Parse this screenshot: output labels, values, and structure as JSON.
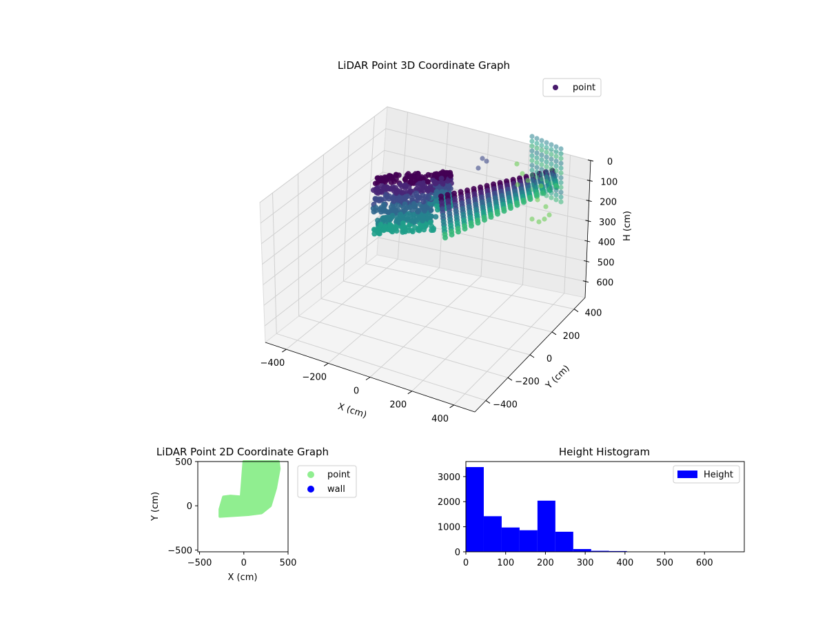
{
  "chart_data": [
    {
      "type": "scatter",
      "projection": "3d",
      "title": "LiDAR Point 3D Coordinate Graph",
      "xlabel": "X (cm)",
      "ylabel": "Y (cm)",
      "zlabel": "H (cm)",
      "xlim": [
        -500,
        500
      ],
      "ylim": [
        -500,
        500
      ],
      "zlim": [
        680,
        0
      ],
      "xticks": [
        "−400",
        "−200",
        "0",
        "200",
        "400"
      ],
      "yticks": [
        "−400",
        "−200",
        "0",
        "200",
        "400"
      ],
      "zticks": [
        "0",
        "100",
        "200",
        "300",
        "400",
        "500",
        "600"
      ],
      "colormap": "viridis",
      "legend": {
        "label": "point",
        "placement": "top-right",
        "color": "#481a6c"
      },
      "series": [
        {
          "name": "point",
          "description_points": [
            {
              "x": -250,
              "y": -100,
              "h": 0
            },
            {
              "x": -150,
              "y": -80,
              "h": 150
            },
            {
              "x": 0,
              "y": 0,
              "h": 200
            },
            {
              "x": 200,
              "y": 200,
              "h": 220
            },
            {
              "x": 350,
              "y": 420,
              "h": 50
            },
            {
              "x": 380,
              "y": 450,
              "h": 250
            }
          ]
        }
      ]
    },
    {
      "type": "scatter",
      "title": "LiDAR Point 2D Coordinate Graph",
      "xlabel": "X (cm)",
      "ylabel": "Y (cm)",
      "xlim": [
        -520,
        500
      ],
      "ylim": [
        -520,
        500
      ],
      "xticks": [
        "−500",
        "0",
        "500"
      ],
      "yticks": [
        "−500",
        "0",
        "500"
      ],
      "legend": {
        "placement": "outside-right"
      },
      "series": [
        {
          "name": "point",
          "color": "#90ee90",
          "region": [
            [
              -270,
              -40
            ],
            [
              -230,
              100
            ],
            [
              -150,
              110
            ],
            [
              -30,
              100
            ],
            [
              0,
              500
            ],
            [
              390,
              500
            ],
            [
              400,
              420
            ],
            [
              360,
              200
            ],
            [
              300,
              0
            ],
            [
              200,
              -80
            ],
            [
              50,
              -100
            ],
            [
              -270,
              -120
            ]
          ]
        },
        {
          "name": "wall",
          "color": "#0000ff",
          "region": []
        }
      ]
    },
    {
      "type": "bar",
      "subtype": "histogram",
      "title": "Height Histogram",
      "xlim": [
        0,
        700
      ],
      "ylim": [
        0,
        3600
      ],
      "xticks": [
        "0",
        "100",
        "200",
        "300",
        "400",
        "500",
        "600"
      ],
      "yticks": [
        "0",
        "1000",
        "2000",
        "3000"
      ],
      "legend": {
        "label": "Height",
        "placement": "top-right"
      },
      "color": "#0000ff",
      "bins": [
        {
          "x0": 0,
          "x1": 45,
          "value": 3380
        },
        {
          "x0": 45,
          "x1": 90,
          "value": 1420
        },
        {
          "x0": 90,
          "x1": 135,
          "value": 970
        },
        {
          "x0": 135,
          "x1": 180,
          "value": 860
        },
        {
          "x0": 180,
          "x1": 225,
          "value": 2040
        },
        {
          "x0": 225,
          "x1": 270,
          "value": 800
        },
        {
          "x0": 270,
          "x1": 315,
          "value": 110
        },
        {
          "x0": 315,
          "x1": 360,
          "value": 40
        },
        {
          "x0": 360,
          "x1": 405,
          "value": 30
        }
      ]
    }
  ]
}
